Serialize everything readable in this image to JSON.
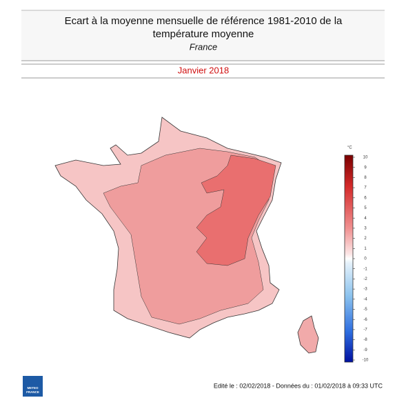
{
  "header": {
    "title_line1": "Ecart à la moyenne mensuelle de référence 1981-2010 de la",
    "title_line2": "température moyenne",
    "subtitle": "France",
    "period": "Janvier 2018"
  },
  "legend": {
    "unit": "°C",
    "ticks": [
      10,
      9,
      8,
      7,
      6,
      5,
      4,
      3,
      2,
      1,
      0,
      -1,
      -2,
      -3,
      -4,
      -5,
      -6,
      -7,
      -8,
      -9,
      -10
    ]
  },
  "footer": {
    "text": "Edité le : 02/02/2018 - Données du : 01/02/2018 à 09:33 UTC",
    "logo_line1": "METEO",
    "logo_line2": "FRANCE"
  }
}
